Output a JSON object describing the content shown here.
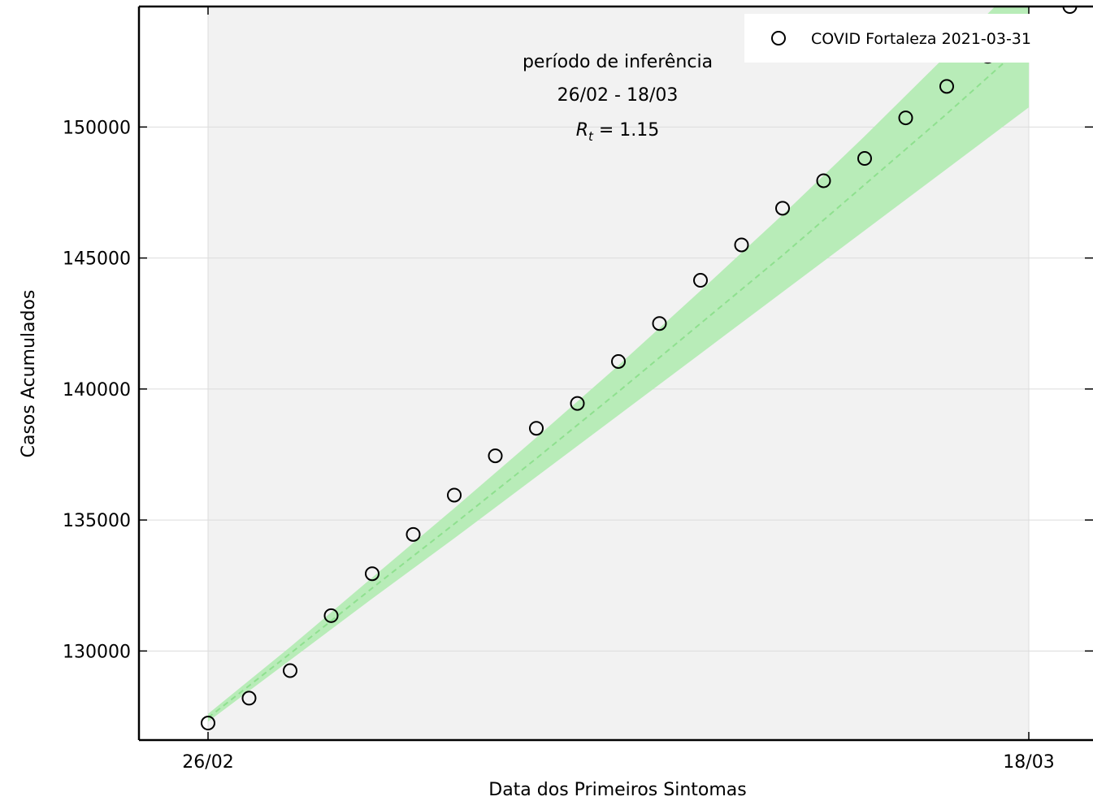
{
  "chart_data": {
    "type": "scatter",
    "xlabel": "Data dos Primeiros Sintomas",
    "ylabel": "Casos Acumulados",
    "x_ticks": [
      "26/02",
      "18/03"
    ],
    "y_ticks": [
      130000,
      135000,
      140000,
      145000,
      150000
    ],
    "ylim": [
      126600,
      154600
    ],
    "grid": true,
    "legend_position": "top-right",
    "annotation": {
      "line1": "período de inferência",
      "line2": "26/02 - 18/03",
      "rt_symbol": "R",
      "rt_subscript": "t",
      "rt_value": " = 1.15"
    },
    "series": [
      {
        "name": "COVID Fortaleza 2021-03-31",
        "style": "open-circle",
        "x": [
          "26/02",
          "27/02",
          "28/02",
          "01/03",
          "02/03",
          "03/03",
          "04/03",
          "05/03",
          "06/03",
          "07/03",
          "08/03",
          "09/03",
          "10/03",
          "11/03",
          "12/03",
          "13/03",
          "14/03",
          "15/03",
          "16/03",
          "17/03",
          "18/03",
          "19/03"
        ],
        "y": [
          127250,
          128200,
          129250,
          131350,
          132950,
          134450,
          135950,
          137450,
          138500,
          139450,
          141050,
          142500,
          144150,
          145500,
          146900,
          147950,
          148800,
          150350,
          151550,
          152700,
          153900,
          154600
        ]
      }
    ],
    "fit": {
      "style": "dashed-line-with-band",
      "x": [
        "26/02",
        "28/02",
        "02/03",
        "04/03",
        "06/03",
        "08/03",
        "10/03",
        "12/03",
        "14/03",
        "16/03",
        "18/03"
      ],
      "y": [
        127450,
        129900,
        132400,
        134850,
        137350,
        139900,
        142500,
        145100,
        147800,
        150500,
        153300
      ],
      "lower": [
        127300,
        129650,
        132000,
        134300,
        136650,
        139000,
        141350,
        143700,
        146050,
        148400,
        150750
      ],
      "upper": [
        127600,
        130150,
        132800,
        135450,
        138150,
        140900,
        143750,
        146650,
        149650,
        152750,
        155900
      ]
    },
    "colors": {
      "band": "#b8ecb8",
      "fit_line": "#8fe08f",
      "plot_bg": "#f2f2f2",
      "grid": "#dcdcdc"
    }
  }
}
